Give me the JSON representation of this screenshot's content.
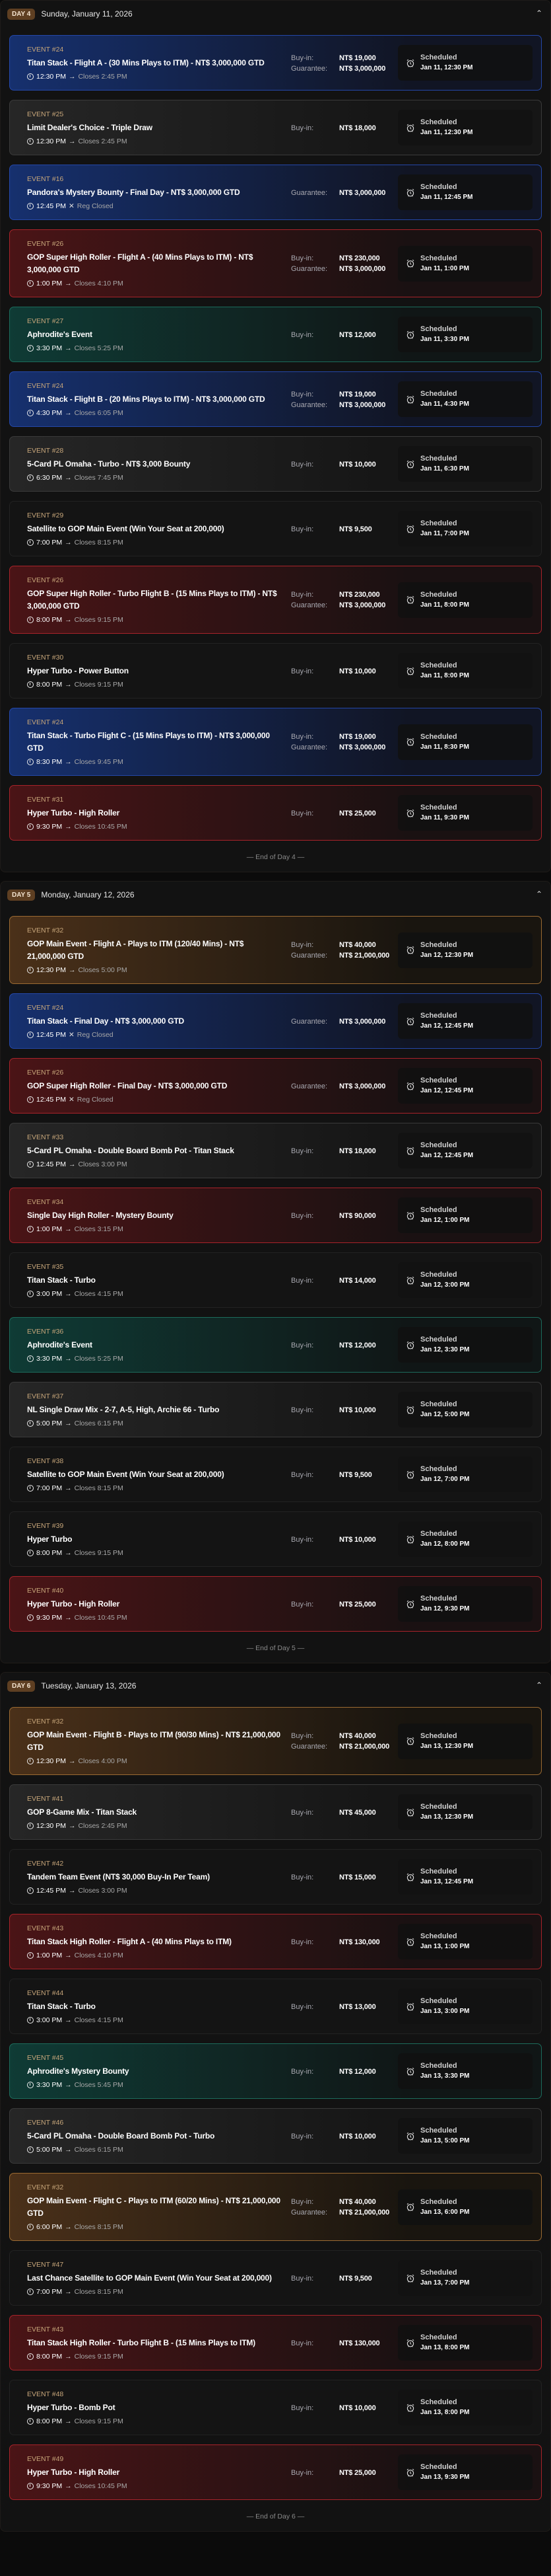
{
  "labels": {
    "buyin": "Buy-in:",
    "guarantee": "Guarantee:",
    "arrow": "→",
    "closed_mark": "✕"
  },
  "colors": {
    "blue": "#2447a8",
    "red": "#a8232a",
    "teal": "#1c6b5b",
    "gold": "#9b6a32",
    "grey": "#3a3a3a",
    "badge": "#5e3f22"
  },
  "days": [
    {
      "badge": "DAY 4",
      "date": "Sunday, January 11, 2026",
      "end_label": "— End of Day 4 —",
      "events": [
        {
          "style": "blue",
          "number": "EVENT #24",
          "title": "Titan Stack - Flight A - (30 Mins Plays to ITM) - NT$ 3,000,000 GTD",
          "start": "12:30 PM",
          "close": "Closes 2:45 PM",
          "reg_closed": false,
          "buyin": "NT$ 19,000",
          "guarantee": "NT$ 3,000,000",
          "status": "Scheduled",
          "scheduled": "Jan 11, 12:30 PM"
        },
        {
          "style": "grey",
          "number": "EVENT #25",
          "title": "Limit Dealer's Choice - Triple Draw",
          "start": "12:30 PM",
          "close": "Closes 2:45 PM",
          "reg_closed": false,
          "buyin": "NT$ 18,000",
          "status": "Scheduled",
          "scheduled": "Jan 11, 12:30 PM"
        },
        {
          "style": "blue",
          "number": "EVENT #16",
          "title": "Pandora's Mystery Bounty - Final Day - NT$ 3,000,000 GTD",
          "start": "12:45 PM",
          "close": "Reg Closed",
          "reg_closed": true,
          "guarantee": "NT$ 3,000,000",
          "status": "Scheduled",
          "scheduled": "Jan 11, 12:45 PM"
        },
        {
          "style": "red",
          "number": "EVENT #26",
          "title": "GOP Super High Roller - Flight A - (40 Mins Plays to ITM) - NT$ 3,000,000 GTD",
          "start": "1:00 PM",
          "close": "Closes 4:10 PM",
          "reg_closed": false,
          "buyin": "NT$ 230,000",
          "guarantee": "NT$ 3,000,000",
          "status": "Scheduled",
          "scheduled": "Jan 11, 1:00 PM"
        },
        {
          "style": "teal",
          "number": "EVENT #27",
          "title": "Aphrodite's Event",
          "start": "3:30 PM",
          "close": "Closes 5:25 PM",
          "reg_closed": false,
          "buyin": "NT$ 12,000",
          "status": "Scheduled",
          "scheduled": "Jan 11, 3:30 PM"
        },
        {
          "style": "blue",
          "number": "EVENT #24",
          "title": "Titan Stack - Flight B - (20 Mins Plays to ITM) - NT$ 3,000,000 GTD",
          "start": "4:30 PM",
          "close": "Closes 6:05 PM",
          "reg_closed": false,
          "buyin": "NT$ 19,000",
          "guarantee": "NT$ 3,000,000",
          "status": "Scheduled",
          "scheduled": "Jan 11, 4:30 PM"
        },
        {
          "style": "grey",
          "number": "EVENT #28",
          "title": "5-Card PL Omaha - Turbo - NT$ 3,000 Bounty",
          "start": "6:30 PM",
          "close": "Closes 7:45 PM",
          "reg_closed": false,
          "buyin": "NT$ 10,000",
          "status": "Scheduled",
          "scheduled": "Jan 11, 6:30 PM"
        },
        {
          "style": "dark",
          "number": "EVENT #29",
          "title": "Satellite to GOP Main Event (Win Your Seat at 200,000)",
          "start": "7:00 PM",
          "close": "Closes 8:15 PM",
          "reg_closed": false,
          "buyin": "NT$ 9,500",
          "status": "Scheduled",
          "scheduled": "Jan 11, 7:00 PM"
        },
        {
          "style": "red",
          "number": "EVENT #26",
          "title": "GOP Super High Roller - Turbo Flight B - (15 Mins Plays to ITM) - NT$ 3,000,000 GTD",
          "start": "8:00 PM",
          "close": "Closes 9:15 PM",
          "reg_closed": false,
          "buyin": "NT$ 230,000",
          "guarantee": "NT$ 3,000,000",
          "status": "Scheduled",
          "scheduled": "Jan 11, 8:00 PM"
        },
        {
          "style": "dark",
          "number": "EVENT #30",
          "title": "Hyper Turbo - Power Button",
          "start": "8:00 PM",
          "close": "Closes 9:15 PM",
          "reg_closed": false,
          "buyin": "NT$ 10,000",
          "status": "Scheduled",
          "scheduled": "Jan 11, 8:00 PM"
        },
        {
          "style": "blue",
          "number": "EVENT #24",
          "title": "Titan Stack - Turbo Flight C - (15 Mins Plays to ITM) - NT$ 3,000,000 GTD",
          "start": "8:30 PM",
          "close": "Closes 9:45 PM",
          "reg_closed": false,
          "buyin": "NT$ 19,000",
          "guarantee": "NT$ 3,000,000",
          "status": "Scheduled",
          "scheduled": "Jan 11, 8:30 PM"
        },
        {
          "style": "red",
          "number": "EVENT #31",
          "title": "Hyper Turbo - High Roller",
          "start": "9:30 PM",
          "close": "Closes 10:45 PM",
          "reg_closed": false,
          "buyin": "NT$ 25,000",
          "status": "Scheduled",
          "scheduled": "Jan 11, 9:30 PM"
        }
      ]
    },
    {
      "badge": "DAY 5",
      "date": "Monday, January 12, 2026",
      "end_label": "— End of Day 5 —",
      "events": [
        {
          "style": "gold",
          "number": "EVENT #32",
          "title": "GOP Main Event - Flight A - Plays to ITM (120/40 Mins) - NT$ 21,000,000 GTD",
          "start": "12:30 PM",
          "close": "Closes 5:00 PM",
          "reg_closed": false,
          "buyin": "NT$ 40,000",
          "guarantee": "NT$ 21,000,000",
          "status": "Scheduled",
          "scheduled": "Jan 12, 12:30 PM"
        },
        {
          "style": "blue",
          "number": "EVENT #24",
          "title": "Titan Stack - Final Day - NT$ 3,000,000 GTD",
          "start": "12:45 PM",
          "close": "Reg Closed",
          "reg_closed": true,
          "guarantee": "NT$ 3,000,000",
          "status": "Scheduled",
          "scheduled": "Jan 12, 12:45 PM"
        },
        {
          "style": "red",
          "number": "EVENT #26",
          "title": "GOP Super High Roller - Final Day - NT$ 3,000,000 GTD",
          "start": "12:45 PM",
          "close": "Reg Closed",
          "reg_closed": true,
          "guarantee": "NT$ 3,000,000",
          "status": "Scheduled",
          "scheduled": "Jan 12, 12:45 PM"
        },
        {
          "style": "grey",
          "number": "EVENT #33",
          "title": "5-Card PL Omaha - Double Board Bomb Pot - Titan Stack",
          "start": "12:45 PM",
          "close": "Closes 3:00 PM",
          "reg_closed": false,
          "buyin": "NT$ 18,000",
          "status": "Scheduled",
          "scheduled": "Jan 12, 12:45 PM"
        },
        {
          "style": "red",
          "number": "EVENT #34",
          "title": "Single Day High Roller - Mystery Bounty",
          "start": "1:00 PM",
          "close": "Closes 3:15 PM",
          "reg_closed": false,
          "buyin": "NT$ 90,000",
          "status": "Scheduled",
          "scheduled": "Jan 12, 1:00 PM"
        },
        {
          "style": "dark",
          "number": "EVENT #35",
          "title": "Titan Stack - Turbo",
          "start": "3:00 PM",
          "close": "Closes 4:15 PM",
          "reg_closed": false,
          "buyin": "NT$ 14,000",
          "status": "Scheduled",
          "scheduled": "Jan 12, 3:00 PM"
        },
        {
          "style": "teal",
          "number": "EVENT #36",
          "title": "Aphrodite's Event",
          "start": "3:30 PM",
          "close": "Closes 5:25 PM",
          "reg_closed": false,
          "buyin": "NT$ 12,000",
          "status": "Scheduled",
          "scheduled": "Jan 12, 3:30 PM"
        },
        {
          "style": "grey",
          "number": "EVENT #37",
          "title": "NL Single Draw Mix - 2-7, A-5, High, Archie 66 - Turbo",
          "start": "5:00 PM",
          "close": "Closes 6:15 PM",
          "reg_closed": false,
          "buyin": "NT$ 10,000",
          "status": "Scheduled",
          "scheduled": "Jan 12, 5:00 PM"
        },
        {
          "style": "dark",
          "number": "EVENT #38",
          "title": "Satellite to GOP Main Event (Win Your Seat at 200,000)",
          "start": "7:00 PM",
          "close": "Closes 8:15 PM",
          "reg_closed": false,
          "buyin": "NT$ 9,500",
          "status": "Scheduled",
          "scheduled": "Jan 12, 7:00 PM"
        },
        {
          "style": "dark",
          "number": "EVENT #39",
          "title": "Hyper Turbo",
          "start": "8:00 PM",
          "close": "Closes 9:15 PM",
          "reg_closed": false,
          "buyin": "NT$ 10,000",
          "status": "Scheduled",
          "scheduled": "Jan 12, 8:00 PM"
        },
        {
          "style": "red",
          "number": "EVENT #40",
          "title": "Hyper Turbo - High Roller",
          "start": "9:30 PM",
          "close": "Closes 10:45 PM",
          "reg_closed": false,
          "buyin": "NT$ 25,000",
          "status": "Scheduled",
          "scheduled": "Jan 12, 9:30 PM"
        }
      ]
    },
    {
      "badge": "DAY 6",
      "date": "Tuesday, January 13, 2026",
      "end_label": "— End of Day 6 —",
      "events": [
        {
          "style": "gold",
          "number": "EVENT #32",
          "title": "GOP Main Event - Flight B - Plays to ITM (90/30 Mins) - NT$ 21,000,000 GTD",
          "start": "12:30 PM",
          "close": "Closes 4:00 PM",
          "reg_closed": false,
          "buyin": "NT$ 40,000",
          "guarantee": "NT$ 21,000,000",
          "status": "Scheduled",
          "scheduled": "Jan 13, 12:30 PM"
        },
        {
          "style": "grey",
          "number": "EVENT #41",
          "title": "GOP 8-Game Mix - Titan Stack",
          "start": "12:30 PM",
          "close": "Closes 2:45 PM",
          "reg_closed": false,
          "buyin": "NT$ 45,000",
          "status": "Scheduled",
          "scheduled": "Jan 13, 12:30 PM"
        },
        {
          "style": "dark",
          "number": "EVENT #42",
          "title": "Tandem Team Event (NT$ 30,000 Buy-In Per Team)",
          "start": "12:45 PM",
          "close": "Closes 3:00 PM",
          "reg_closed": false,
          "buyin": "NT$ 15,000",
          "status": "Scheduled",
          "scheduled": "Jan 13, 12:45 PM"
        },
        {
          "style": "red",
          "number": "EVENT #43",
          "title": "Titan Stack High Roller - Flight A - (40 Mins Plays to ITM)",
          "start": "1:00 PM",
          "close": "Closes 4:10 PM",
          "reg_closed": false,
          "buyin": "NT$ 130,000",
          "status": "Scheduled",
          "scheduled": "Jan 13, 1:00 PM"
        },
        {
          "style": "dark",
          "number": "EVENT #44",
          "title": "Titan Stack - Turbo",
          "start": "3:00 PM",
          "close": "Closes 4:15 PM",
          "reg_closed": false,
          "buyin": "NT$ 13,000",
          "status": "Scheduled",
          "scheduled": "Jan 13, 3:00 PM"
        },
        {
          "style": "teal",
          "number": "EVENT #45",
          "title": "Aphrodite's Mystery Bounty",
          "start": "3:30 PM",
          "close": "Closes 5:45 PM",
          "reg_closed": false,
          "buyin": "NT$ 12,000",
          "status": "Scheduled",
          "scheduled": "Jan 13, 3:30 PM"
        },
        {
          "style": "grey",
          "number": "EVENT #46",
          "title": "5-Card PL Omaha - Double Board Bomb Pot - Turbo",
          "start": "5:00 PM",
          "close": "Closes 6:15 PM",
          "reg_closed": false,
          "buyin": "NT$ 10,000",
          "status": "Scheduled",
          "scheduled": "Jan 13, 5:00 PM"
        },
        {
          "style": "gold",
          "number": "EVENT #32",
          "title": "GOP Main Event - Flight C - Plays to ITM (60/20 Mins) - NT$ 21,000,000 GTD",
          "start": "6:00 PM",
          "close": "Closes 8:15 PM",
          "reg_closed": false,
          "buyin": "NT$ 40,000",
          "guarantee": "NT$ 21,000,000",
          "status": "Scheduled",
          "scheduled": "Jan 13, 6:00 PM"
        },
        {
          "style": "dark",
          "number": "EVENT #47",
          "title": "Last Chance Satellite to GOP Main Event (Win Your Seat at 200,000)",
          "start": "7:00 PM",
          "close": "Closes 8:15 PM",
          "reg_closed": false,
          "buyin": "NT$ 9,500",
          "status": "Scheduled",
          "scheduled": "Jan 13, 7:00 PM"
        },
        {
          "style": "red",
          "number": "EVENT #43",
          "title": "Titan Stack High Roller - Turbo Flight B - (15 Mins Plays to ITM)",
          "start": "8:00 PM",
          "close": "Closes 9:15 PM",
          "reg_closed": false,
          "buyin": "NT$ 130,000",
          "status": "Scheduled",
          "scheduled": "Jan 13, 8:00 PM"
        },
        {
          "style": "dark",
          "number": "EVENT #48",
          "title": "Hyper Turbo - Bomb Pot",
          "start": "8:00 PM",
          "close": "Closes 9:15 PM",
          "reg_closed": false,
          "buyin": "NT$ 10,000",
          "status": "Scheduled",
          "scheduled": "Jan 13, 8:00 PM"
        },
        {
          "style": "red",
          "number": "EVENT #49",
          "title": "Hyper Turbo - High Roller",
          "start": "9:30 PM",
          "close": "Closes 10:45 PM",
          "reg_closed": false,
          "buyin": "NT$ 25,000",
          "status": "Scheduled",
          "scheduled": "Jan 13, 9:30 PM"
        }
      ]
    }
  ]
}
